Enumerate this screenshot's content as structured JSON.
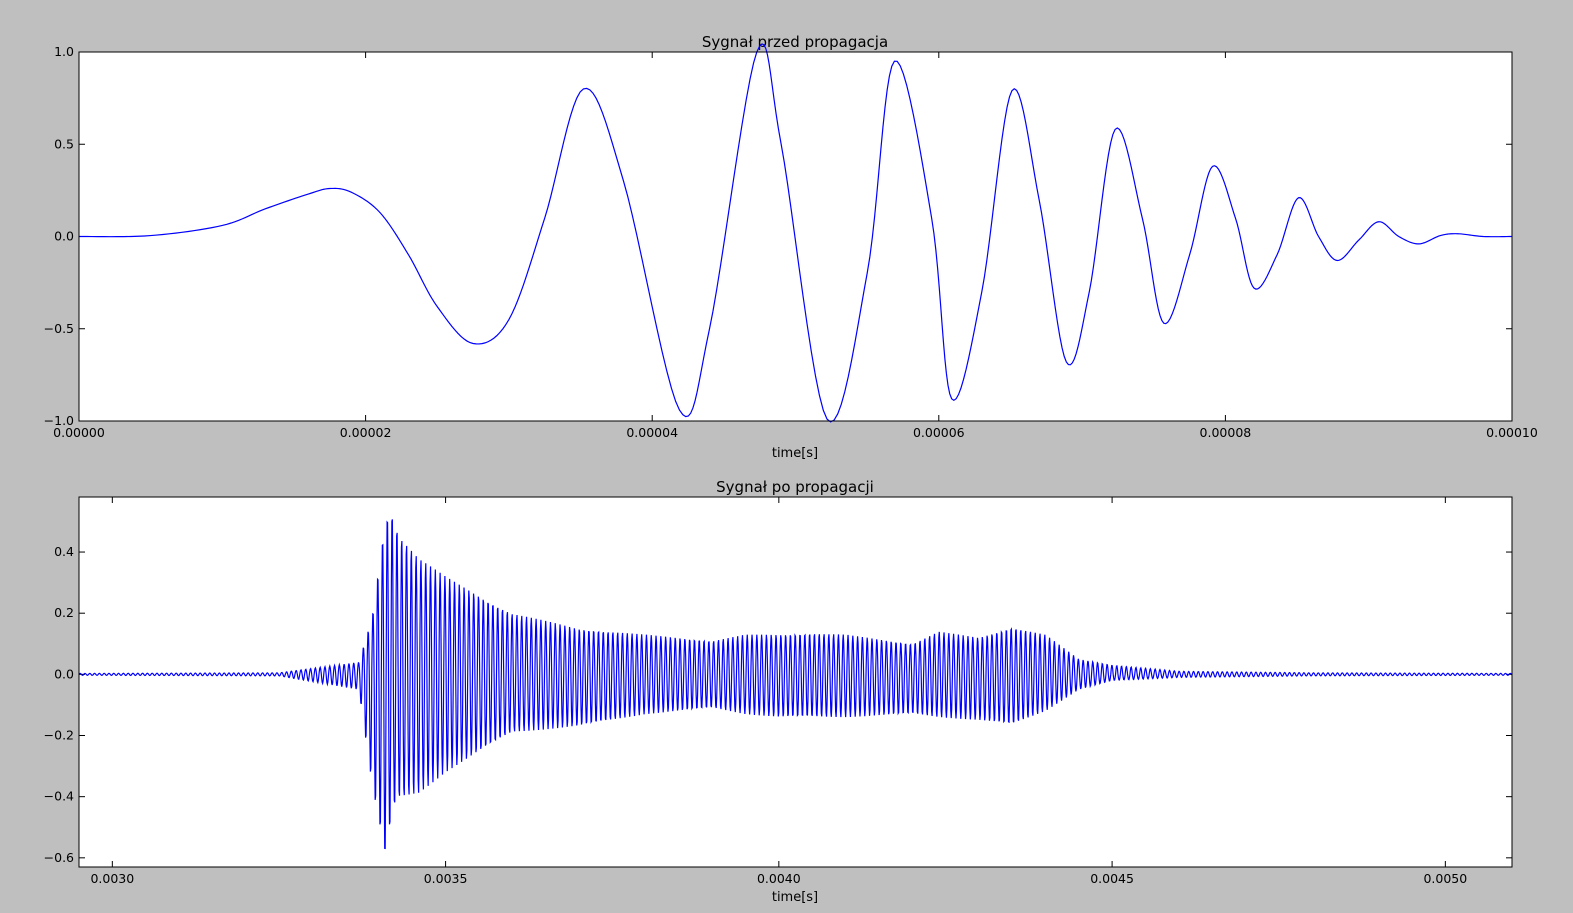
{
  "chart_data": [
    {
      "type": "line",
      "title": "Sygnał przed propagacja",
      "xlabel": "time[s]",
      "ylabel": "",
      "xlim": [
        0,
        0.0001
      ],
      "ylim": [
        -1.0,
        1.0
      ],
      "xticks": [
        0,
        2e-05,
        4e-05,
        6e-05,
        8e-05,
        0.0001
      ],
      "xtick_labels": [
        "0.00000",
        "0.00002",
        "0.00004",
        "0.00006",
        "0.00008",
        "0.00010"
      ],
      "yticks": [
        -1.0,
        -0.5,
        0.0,
        0.5,
        1.0
      ],
      "ytick_labels": [
        "−1.0",
        "−0.5",
        "0.0",
        "0.5",
        "1.0"
      ],
      "grid": false,
      "color": "#0000ff",
      "series": [
        {
          "x": [
            0,
            5e-06,
            1e-05,
            1.3e-05,
            1.6e-05,
            1.75e-05,
            1.9e-05,
            2.1e-05,
            2.3e-05,
            2.5e-05,
            2.75e-05,
            3e-05,
            3.25e-05,
            3.52e-05,
            3.8e-05,
            4.19e-05,
            4.4e-05,
            4.73e-05,
            4.9e-05,
            5.22e-05,
            5.5e-05,
            5.69e-05,
            5.95e-05,
            6.09e-05,
            6.3e-05,
            6.51e-05,
            6.7e-05,
            6.89e-05,
            7.05e-05,
            7.23e-05,
            7.42e-05,
            7.57e-05,
            7.75e-05,
            7.91e-05,
            8.07e-05,
            8.2e-05,
            8.36e-05,
            8.51e-05,
            8.65e-05,
            8.78e-05,
            8.93e-05,
            9.07e-05,
            9.21e-05,
            9.35e-05,
            9.5e-05,
            9.62e-05,
            9.8e-05,
            0.0001
          ],
          "y": [
            0,
            0.005,
            0.06,
            0.15,
            0.23,
            0.26,
            0.24,
            0.13,
            -0.1,
            -0.38,
            -0.58,
            -0.45,
            0.1,
            0.8,
            0.3,
            -0.94,
            -0.5,
            1.0,
            0.5,
            -0.99,
            -0.2,
            0.95,
            0.1,
            -0.88,
            -0.3,
            0.79,
            0.2,
            -0.68,
            -0.3,
            0.58,
            0.1,
            -0.47,
            -0.1,
            0.38,
            0.1,
            -0.28,
            -0.1,
            0.21,
            0.0,
            -0.13,
            -0.02,
            0.08,
            0.0,
            -0.04,
            0.005,
            0.015,
            0.0,
            0.0
          ]
        }
      ]
    },
    {
      "type": "line",
      "title": "Sygnał po propagacji",
      "xlabel": "time[s]",
      "ylabel": "",
      "xlim": [
        0.00295,
        0.0051
      ],
      "ylim": [
        -0.63,
        0.58
      ],
      "xticks": [
        0.003,
        0.0035,
        0.004,
        0.0045,
        0.005
      ],
      "xtick_labels": [
        "0.0030",
        "0.0035",
        "0.0040",
        "0.0045",
        "0.0050"
      ],
      "yticks": [
        -0.6,
        -0.4,
        -0.2,
        0.0,
        0.2,
        0.4
      ],
      "ytick_labels": [
        "−0.6",
        "−0.4",
        "−0.2",
        "0.0",
        "0.2",
        "0.4"
      ],
      "grid": false,
      "color": "#0000ff",
      "series": [
        {
          "description_free": true,
          "envelope_t": [
            0.00295,
            0.00325,
            0.00337,
            0.00339,
            0.00341,
            0.00342,
            0.00343,
            0.00346,
            0.0035,
            0.0036,
            0.0037,
            0.0038,
            0.0039,
            0.00395,
            0.004,
            0.00405,
            0.0041,
            0.0042,
            0.00424,
            0.0043,
            0.00435,
            0.0044,
            0.00445,
            0.0045,
            0.0046,
            0.0048,
            0.0051
          ],
          "envelope_max": [
            0.003,
            0.005,
            0.04,
            0.19,
            0.52,
            0.53,
            0.46,
            0.38,
            0.32,
            0.2,
            0.15,
            0.13,
            0.11,
            0.13,
            0.13,
            0.135,
            0.13,
            0.1,
            0.14,
            0.12,
            0.155,
            0.13,
            0.05,
            0.03,
            0.01,
            0.005,
            0.003
          ],
          "envelope_min": [
            -0.003,
            -0.005,
            -0.05,
            -0.37,
            -0.61,
            -0.45,
            -0.41,
            -0.39,
            -0.32,
            -0.19,
            -0.17,
            -0.13,
            -0.11,
            -0.13,
            -0.14,
            -0.14,
            -0.14,
            -0.13,
            -0.14,
            -0.15,
            -0.165,
            -0.12,
            -0.05,
            -0.02,
            -0.01,
            -0.005,
            -0.003
          ],
          "period": 7.2e-06
        }
      ]
    }
  ]
}
